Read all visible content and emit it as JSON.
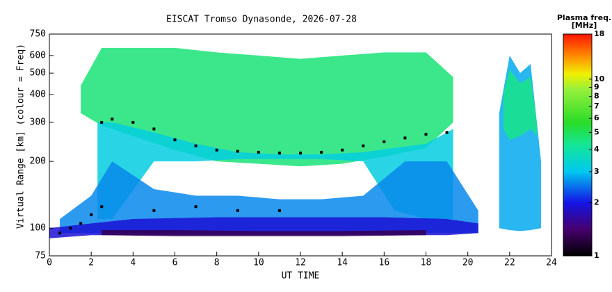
{
  "chart_data": {
    "type": "range-time",
    "title": "EISCAT Tromso Dynasonde, 2026-07-28",
    "x_label": "UT TIME",
    "y_label": "Virtual Range [km] (colour = Freq)",
    "xlim": [
      0,
      24
    ],
    "xticks": [
      0,
      2,
      4,
      6,
      8,
      10,
      12,
      14,
      16,
      18,
      20,
      22,
      24
    ],
    "ylim": [
      75,
      750
    ],
    "y_log": true,
    "yticks": [
      75,
      100,
      200,
      300,
      400,
      500,
      600,
      750
    ],
    "colorbar": {
      "title": [
        "Plasma freq.",
        "[MHz]"
      ],
      "lim": [
        1,
        18
      ],
      "log": true,
      "ticks": [
        1,
        2,
        3,
        4,
        5,
        6,
        7,
        8,
        9,
        10,
        18
      ]
    },
    "bands": [
      {
        "freq": 4.6,
        "x": [
          1.5,
          2.5,
          4,
          6,
          8,
          10,
          12,
          14,
          16,
          18,
          19.3
        ],
        "high": [
          440,
          650,
          650,
          650,
          620,
          600,
          580,
          600,
          620,
          620,
          480
        ],
        "low": [
          330,
          290,
          260,
          225,
          200,
          195,
          190,
          195,
          210,
          230,
          300
        ]
      },
      {
        "freq": 3.2,
        "x": [
          2.3,
          3,
          5,
          7,
          9,
          11,
          13,
          15,
          16.5,
          18,
          19.3
        ],
        "high": [
          300,
          300,
          270,
          240,
          220,
          215,
          215,
          220,
          230,
          240,
          280
        ],
        "low": [
          110,
          110,
          200,
          200,
          205,
          205,
          205,
          200,
          120,
          110,
          110
        ]
      },
      {
        "freq": 2.6,
        "x": [
          0.5,
          2,
          3,
          5,
          7,
          9,
          11,
          13,
          15,
          17,
          19,
          20.5
        ],
        "high": [
          110,
          140,
          200,
          150,
          140,
          140,
          135,
          135,
          140,
          200,
          200,
          120
        ],
        "low": [
          95,
          95,
          95,
          95,
          95,
          95,
          95,
          95,
          95,
          95,
          95,
          95
        ]
      },
      {
        "freq": 1.9,
        "x": [
          0,
          2,
          4,
          8,
          12,
          16,
          19,
          20.5
        ],
        "high": [
          100,
          105,
          110,
          112,
          112,
          112,
          110,
          105
        ],
        "low": [
          90,
          93,
          93,
          93,
          93,
          93,
          93,
          95
        ]
      },
      {
        "freq": 1.3,
        "x": [
          2.5,
          6,
          10,
          14,
          18
        ],
        "high": [
          98,
          98,
          97,
          97,
          98
        ],
        "low": [
          93,
          92,
          92,
          92,
          93
        ]
      },
      {
        "freq": 2.8,
        "x": [
          21.5,
          22,
          22.5,
          23,
          23.5
        ],
        "high": [
          330,
          600,
          500,
          550,
          200
        ],
        "low": [
          100,
          98,
          97,
          98,
          100
        ]
      },
      {
        "freq": 4.4,
        "x": [
          21.7,
          22,
          22.5,
          23,
          23.3
        ],
        "high": [
          400,
          520,
          450,
          480,
          300
        ],
        "low": [
          280,
          250,
          260,
          280,
          260
        ]
      }
    ],
    "traces": [
      {
        "color": "#000000",
        "x": [
          2.5,
          3,
          4,
          5,
          6,
          7,
          8,
          9,
          10,
          11,
          12,
          13,
          14,
          15,
          16,
          17,
          18,
          19
        ],
        "y": [
          300,
          310,
          300,
          280,
          250,
          235,
          225,
          222,
          220,
          218,
          218,
          220,
          225,
          235,
          245,
          255,
          265,
          270
        ]
      },
      {
        "color": "#000000",
        "x": [
          0.5,
          1,
          1.5,
          2,
          2.5,
          5,
          7,
          9,
          11
        ],
        "y": [
          95,
          100,
          105,
          115,
          125,
          120,
          125,
          120,
          120
        ]
      }
    ]
  }
}
